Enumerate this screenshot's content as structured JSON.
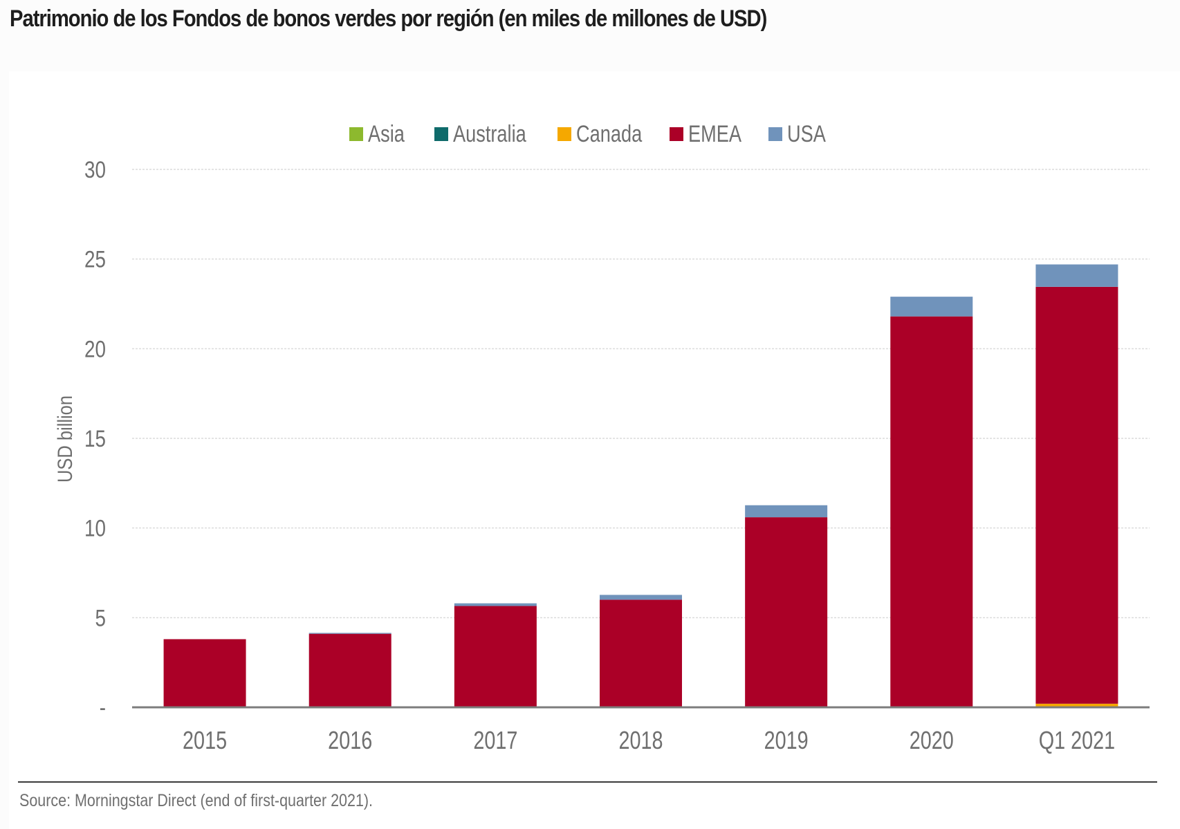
{
  "title": "Patrimonio de los Fondos de bonos verdes por región (en miles de millones de USD)",
  "source": "Source: Morningstar Direct (end of first-quarter 2021).",
  "chart_data": {
    "type": "bar",
    "stacked": true,
    "title": "Patrimonio de los Fondos de bonos verdes por región (en miles de millones de USD)",
    "xlabel": "",
    "ylabel": "USD billion",
    "ylim": [
      0,
      30
    ],
    "yticks": [
      0,
      5,
      10,
      15,
      20,
      25,
      30
    ],
    "ytick_labels": [
      "-",
      "5",
      "10",
      "15",
      "20",
      "25",
      "30"
    ],
    "grid": true,
    "legend_position": "top-center",
    "categories": [
      "2015",
      "2016",
      "2017",
      "2018",
      "2019",
      "2020",
      "Q1 2021"
    ],
    "series": [
      {
        "name": "Asia",
        "color": "#8db92e",
        "values": [
          0,
          0,
          0,
          0,
          0,
          0,
          0
        ]
      },
      {
        "name": "Australia",
        "color": "#0f6b6b",
        "values": [
          0,
          0,
          0,
          0,
          0,
          0,
          0
        ]
      },
      {
        "name": "Canada",
        "color": "#f5a800",
        "values": [
          0,
          0,
          0,
          0,
          0,
          0,
          0.2
        ]
      },
      {
        "name": "EMEA",
        "color": "#ab0027",
        "values": [
          3.8,
          4.1,
          5.65,
          6.0,
          10.6,
          21.8,
          23.25
        ]
      },
      {
        "name": "USA",
        "color": "#7093bb",
        "values": [
          0,
          0.05,
          0.15,
          0.27,
          0.67,
          1.1,
          1.25
        ]
      }
    ]
  }
}
